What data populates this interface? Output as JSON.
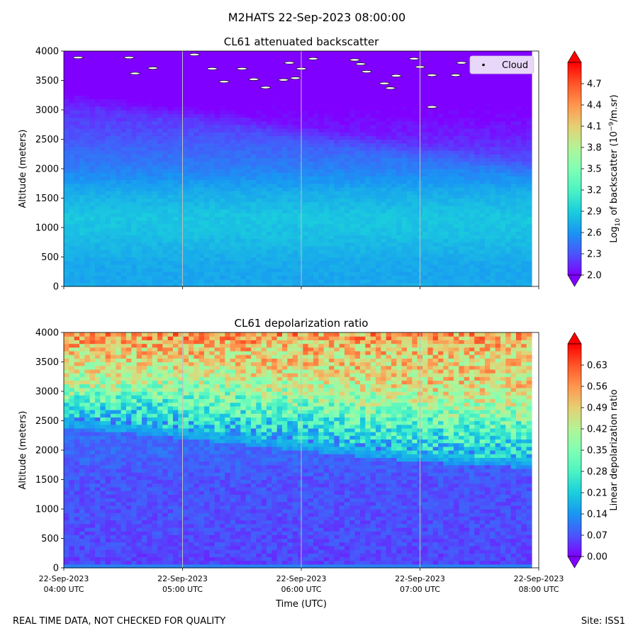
{
  "suptitle": "M2HATS 22-Sep-2023 08:00:00",
  "footer": {
    "left": "REAL TIME DATA, NOT CHECKED FOR QUALITY",
    "right": "Site: ISS1"
  },
  "colors": {
    "axis": "#000000",
    "vgrid": "#c0c0c0",
    "cloud_fill": "#ffffff",
    "legend_bg": "#e8d7f8",
    "rainbow": [
      "#8000ff",
      "#4a55fb",
      "#1996f3",
      "#1acfdc",
      "#4df3c3",
      "#80ffb4",
      "#b3f396",
      "#e6cf73",
      "#ff964f",
      "#ff5528",
      "#ff0000"
    ]
  },
  "chart_data": [
    {
      "id": "backscatter",
      "type": "heatmap",
      "title": "CL61 attenuated backscatter",
      "ylabel": "Altitude (meters)",
      "ylim": [
        0,
        4000
      ],
      "yticks": [
        0,
        500,
        1000,
        1500,
        2000,
        2500,
        3000,
        3500,
        4000
      ],
      "x_hours": [
        4,
        5,
        6,
        7,
        8
      ],
      "xticklabels_shown": false,
      "vlines_hours": [
        5,
        6,
        7
      ],
      "data_end_hour": 7.94,
      "colorbar": {
        "label_parts": [
          "Log",
          "10",
          " of backscatter (10",
          "−9",
          "/m.sr)"
        ],
        "range": [
          2.0,
          5.0
        ],
        "ticks": [
          "2.0",
          "2.3",
          "2.6",
          "2.9",
          "3.2",
          "3.5",
          "3.8",
          "4.1",
          "4.4",
          "4.7"
        ]
      },
      "layer_top_m": [
        [
          4.0,
          3100
        ],
        [
          4.5,
          2950
        ],
        [
          5.0,
          2800
        ],
        [
          5.5,
          2650
        ],
        [
          6.0,
          2450
        ],
        [
          6.5,
          2300
        ],
        [
          7.0,
          2150
        ],
        [
          7.5,
          2000
        ],
        [
          7.94,
          1850
        ]
      ],
      "mean_value_profile": [
        [
          0,
          2.72
        ],
        [
          150,
          2.68
        ],
        [
          400,
          2.7
        ],
        [
          900,
          2.82
        ],
        [
          1200,
          2.85
        ],
        [
          1600,
          2.72
        ],
        [
          2000,
          2.5
        ],
        [
          2600,
          2.28
        ],
        [
          3200,
          2.12
        ],
        [
          4000,
          2.05
        ]
      ],
      "legend": {
        "position": "top-right",
        "entries": [
          "Cloud"
        ]
      },
      "cloud_points": [
        [
          4.12,
          3890
        ],
        [
          4.55,
          3890
        ],
        [
          4.75,
          3710
        ],
        [
          5.1,
          3940
        ],
        [
          5.25,
          3700
        ],
        [
          5.35,
          3480
        ],
        [
          5.5,
          3700
        ],
        [
          5.7,
          3380
        ],
        [
          5.9,
          3800
        ],
        [
          5.6,
          3520
        ],
        [
          5.85,
          3510
        ],
        [
          6.0,
          3700
        ],
        [
          6.1,
          3870
        ],
        [
          6.45,
          3850
        ],
        [
          6.55,
          3650
        ],
        [
          6.75,
          3370
        ],
        [
          6.8,
          3580
        ],
        [
          6.95,
          3870
        ],
        [
          7.0,
          3730
        ],
        [
          7.1,
          3590
        ],
        [
          7.3,
          3590
        ],
        [
          7.35,
          3800
        ],
        [
          7.6,
          3720
        ],
        [
          7.1,
          3050
        ],
        [
          6.7,
          3450
        ],
        [
          5.95,
          3540
        ],
        [
          4.6,
          3620
        ],
        [
          6.5,
          3780
        ]
      ]
    },
    {
      "id": "depolarization",
      "type": "heatmap",
      "title": "CL61 depolarization ratio",
      "xlabel": "Time (UTC)",
      "ylabel": "Altitude (meters)",
      "ylim": [
        0,
        4000
      ],
      "yticks": [
        0,
        500,
        1000,
        1500,
        2000,
        2500,
        3000,
        3500,
        4000
      ],
      "x_hours": [
        4,
        5,
        6,
        7,
        8
      ],
      "xticklabels": [
        [
          "22-Sep-2023",
          "04:00 UTC"
        ],
        [
          "22-Sep-2023",
          "05:00 UTC"
        ],
        [
          "22-Sep-2023",
          "06:00 UTC"
        ],
        [
          "22-Sep-2023",
          "07:00 UTC"
        ],
        [
          "22-Sep-2023",
          "08:00 UTC"
        ]
      ],
      "vlines_hours": [
        5,
        6,
        7
      ],
      "data_end_hour": 7.94,
      "colorbar": {
        "label": "Linear depolarization ratio",
        "range": [
          0.0,
          0.7
        ],
        "ticks": [
          "0.00",
          "0.07",
          "0.14",
          "0.21",
          "0.28",
          "0.35",
          "0.42",
          "0.49",
          "0.56",
          "0.63"
        ]
      },
      "layer_top_m": [
        [
          4.0,
          2550
        ],
        [
          4.5,
          2450
        ],
        [
          5.0,
          2350
        ],
        [
          5.5,
          2250
        ],
        [
          6.0,
          2150
        ],
        [
          6.5,
          2050
        ],
        [
          7.0,
          1950
        ],
        [
          7.5,
          1900
        ],
        [
          7.94,
          1850
        ]
      ],
      "mean_value_profile": [
        [
          0,
          0.05
        ],
        [
          300,
          0.06
        ],
        [
          1500,
          0.07
        ],
        [
          2200,
          0.1
        ],
        [
          2600,
          0.2
        ],
        [
          3000,
          0.36
        ],
        [
          3400,
          0.45
        ],
        [
          3800,
          0.52
        ],
        [
          4000,
          0.55
        ]
      ]
    }
  ]
}
